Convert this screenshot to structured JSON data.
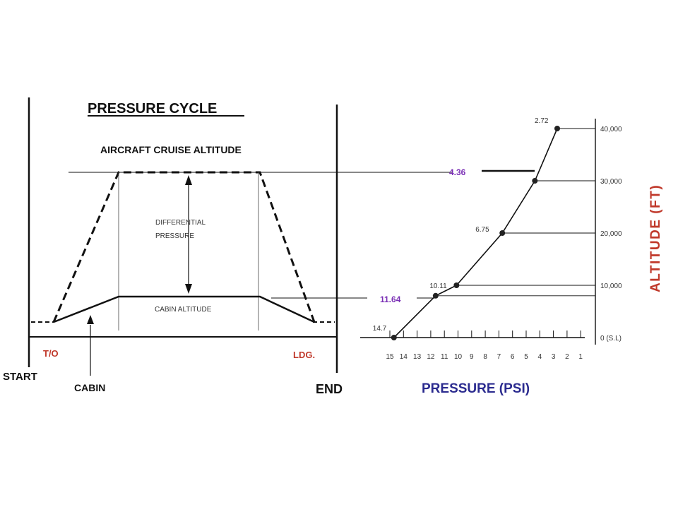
{
  "colors": {
    "ink": "#111111",
    "red": "#c0392b",
    "purple": "#7a2fb5",
    "navy": "#2b2b8f"
  },
  "cycle": {
    "title": "PRESSURE CYCLE",
    "cruise_label": "AIRCRAFT CRUISE ALTITUDE",
    "diff_line1": "DIFFERENTIAL",
    "diff_line2": "PRESSURE",
    "cabin_altitude": "CABIN ALTITUDE",
    "takeoff": "T/O",
    "landing": "LDG.",
    "start": "START",
    "cabin": "CABIN",
    "end": "END"
  },
  "chart": {
    "xlabel": "PRESSURE (PSI)",
    "ylabel": "ALTITUDE (FT)",
    "x_ticks": [
      "15",
      "14",
      "13",
      "12",
      "11",
      "10",
      "9",
      "8",
      "7",
      "6",
      "5",
      "4",
      "3",
      "2",
      "1"
    ],
    "y_ticks": [
      "0 (S.L)",
      "10,000",
      "20,000",
      "30,000",
      "40,000"
    ],
    "highlight_cruise": "4.36",
    "highlight_cabin": "11.64",
    "points": [
      {
        "psi": 14.7,
        "label": "14.7"
      },
      {
        "psi": 10.11,
        "label": "10.11"
      },
      {
        "psi": 6.75,
        "label": "6.75"
      },
      {
        "psi": 2.72,
        "label": "2.72"
      }
    ]
  },
  "chart_data": {
    "type": "line",
    "x": [
      14.7,
      11.64,
      10.11,
      6.75,
      4.36,
      2.72
    ],
    "series": [
      {
        "values": [
          0,
          8000,
          10000,
          20000,
          30000,
          40000
        ]
      }
    ],
    "xlabel": "PRESSURE (PSI)",
    "ylabel": "ALTITUDE (FT)",
    "xlim": [
      15,
      1
    ],
    "ylim": [
      0,
      40000
    ]
  }
}
